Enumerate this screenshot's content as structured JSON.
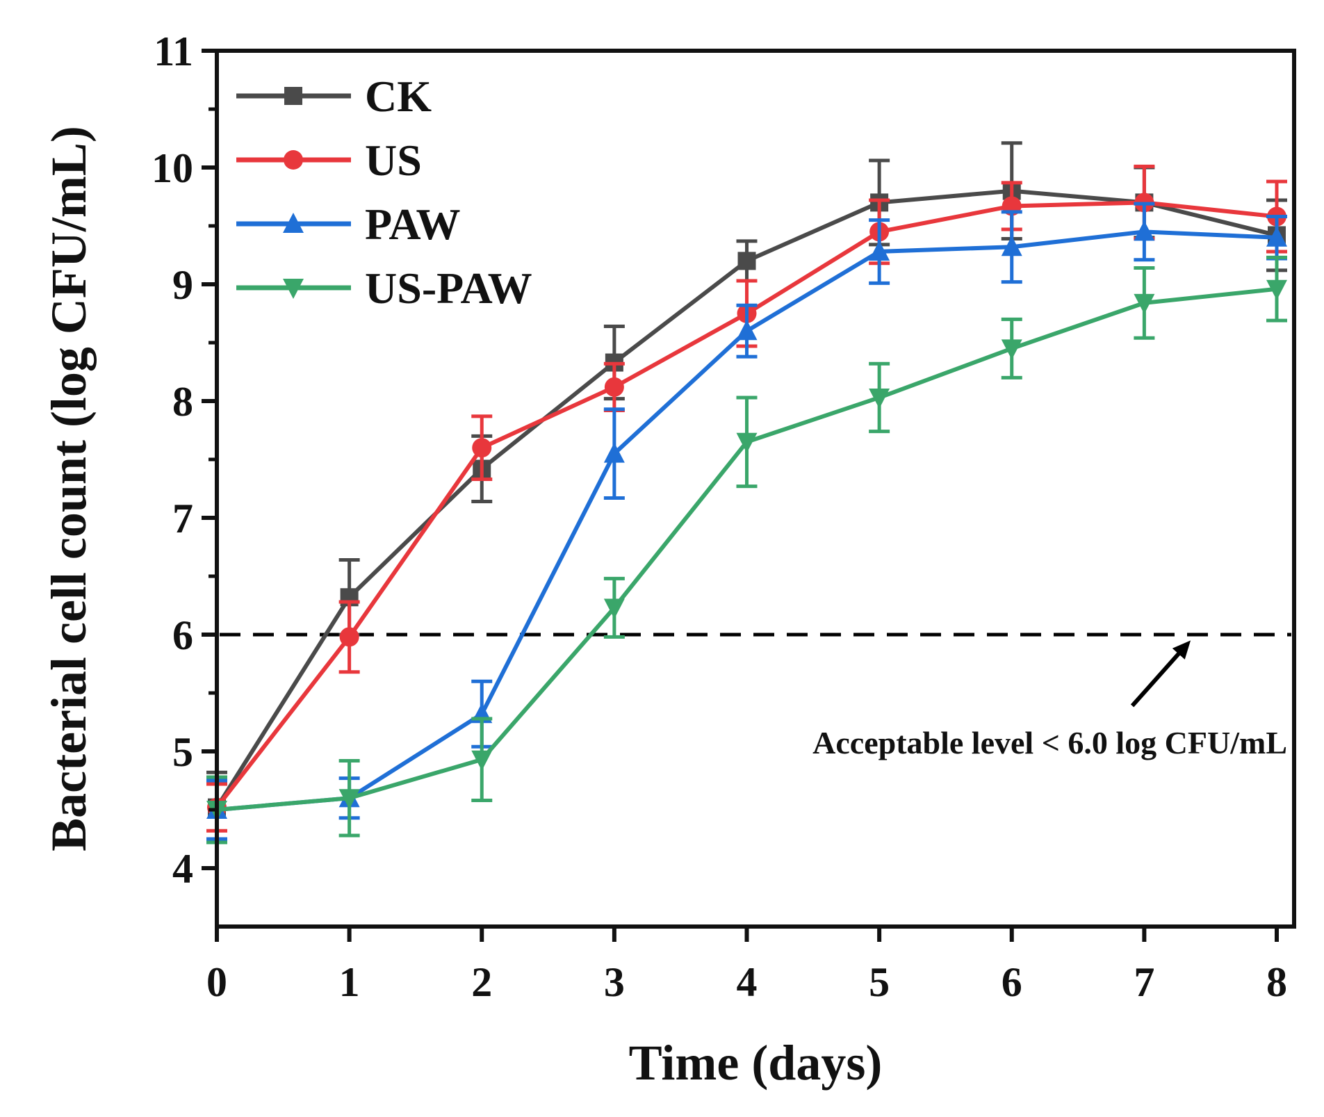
{
  "chart_data": {
    "type": "line",
    "title": "",
    "xlabel": "Time (days)",
    "ylabel": "Bacterial cell count (log CFU/mL)",
    "xlim": [
      0,
      8
    ],
    "ylim": [
      3.5,
      11
    ],
    "x_ticks": [
      0,
      1,
      2,
      3,
      4,
      5,
      6,
      7,
      8
    ],
    "y_ticks": [
      4,
      5,
      6,
      7,
      8,
      9,
      10,
      11
    ],
    "grid": false,
    "legend_position": "top-left",
    "x": [
      0,
      1,
      2,
      3,
      4,
      5,
      6,
      7,
      8
    ],
    "series": [
      {
        "name": "CK",
        "color": "#4a4a4a",
        "marker": "square",
        "values": [
          4.52,
          6.32,
          7.42,
          8.33,
          9.2,
          9.7,
          9.8,
          9.7,
          9.42
        ],
        "errors": [
          0.3,
          0.32,
          0.28,
          0.31,
          0.17,
          0.36,
          0.41,
          0.3,
          0.3
        ]
      },
      {
        "name": "US",
        "color": "#e8373c",
        "marker": "circle",
        "values": [
          4.52,
          5.98,
          7.6,
          8.12,
          8.75,
          9.45,
          9.67,
          9.7,
          9.58
        ],
        "errors": [
          0.2,
          0.3,
          0.27,
          0.2,
          0.28,
          0.27,
          0.2,
          0.31,
          0.3
        ]
      },
      {
        "name": "PAW",
        "color": "#1f6fd6",
        "marker": "triangle-up",
        "values": [
          4.5,
          4.6,
          5.32,
          7.55,
          8.6,
          9.28,
          9.32,
          9.45,
          9.4
        ],
        "errors": [
          0.25,
          0.17,
          0.28,
          0.38,
          0.22,
          0.27,
          0.3,
          0.24,
          0.18
        ]
      },
      {
        "name": "US-PAW",
        "color": "#3aa66a",
        "marker": "triangle-down",
        "values": [
          4.5,
          4.6,
          4.93,
          6.23,
          7.65,
          8.03,
          8.45,
          8.84,
          8.96
        ],
        "errors": [
          0.28,
          0.32,
          0.35,
          0.25,
          0.38,
          0.29,
          0.25,
          0.3,
          0.27
        ]
      }
    ],
    "reference_line": {
      "y": 6,
      "style": "dashed",
      "color": "#000000"
    },
    "annotation": {
      "text": "Acceptable level < 6.0 log CFU/mL",
      "arrow_to": [
        7.35,
        5.95
      ]
    }
  }
}
